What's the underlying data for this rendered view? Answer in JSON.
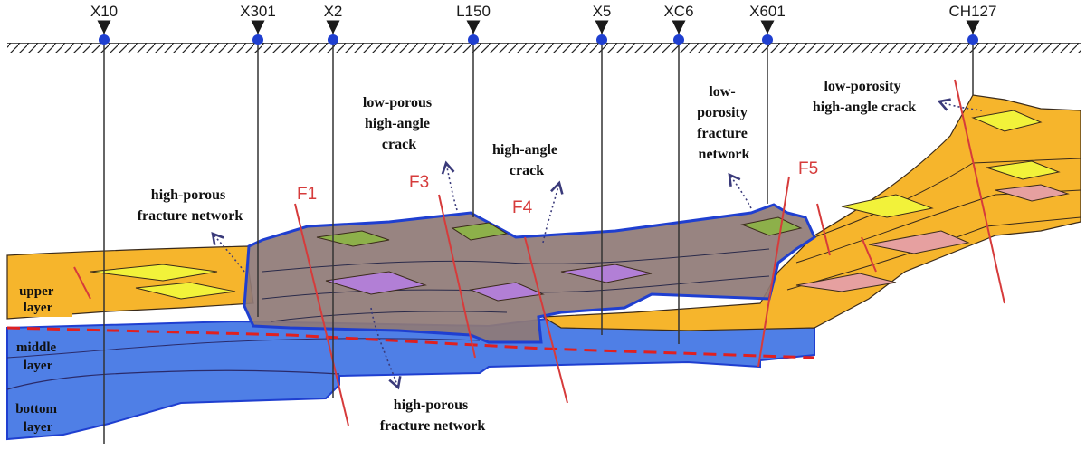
{
  "wells": [
    {
      "name": "X10"
    },
    {
      "name": "X301"
    },
    {
      "name": "X2"
    },
    {
      "name": "L150"
    },
    {
      "name": "X5"
    },
    {
      "name": "XC6"
    },
    {
      "name": "X601"
    },
    {
      "name": "CH127"
    }
  ],
  "faults": [
    {
      "name": "F1"
    },
    {
      "name": "F3"
    },
    {
      "name": "F4"
    },
    {
      "name": "F5"
    }
  ],
  "annotations": {
    "high_porous_network_left": [
      "high-porous",
      "fracture network"
    ],
    "low_porous_crack": [
      "low-porous",
      "high-angle",
      "crack"
    ],
    "high_angle_crack": [
      "high-angle",
      "crack"
    ],
    "low_porosity_network": [
      "low-",
      "porosity",
      "fracture",
      "network"
    ],
    "low_porosity_crack": [
      "low-porosity",
      "high-angle crack"
    ],
    "high_porous_network_bottom": [
      "high-porous",
      "fracture network"
    ]
  },
  "layers": {
    "upper": [
      "upper",
      "layer"
    ],
    "middle": [
      "middle",
      "layer"
    ],
    "bottom": [
      "bottom",
      "layer"
    ]
  },
  "colors": {
    "upper_layer": "#f6b52c",
    "fractured_zone": "#8f7a76",
    "lower_layer": "#4f7fe6",
    "outline_blue": "#1f3fd0",
    "well_dot": "#1f3fd0",
    "fault_red": "#d63b3b",
    "boundary_dash": "#e02020",
    "lens_yellow": "#f2f23a",
    "lens_purple": "#b27fd6",
    "lens_green": "#8db04a",
    "lens_pink": "#e6a0a0"
  }
}
